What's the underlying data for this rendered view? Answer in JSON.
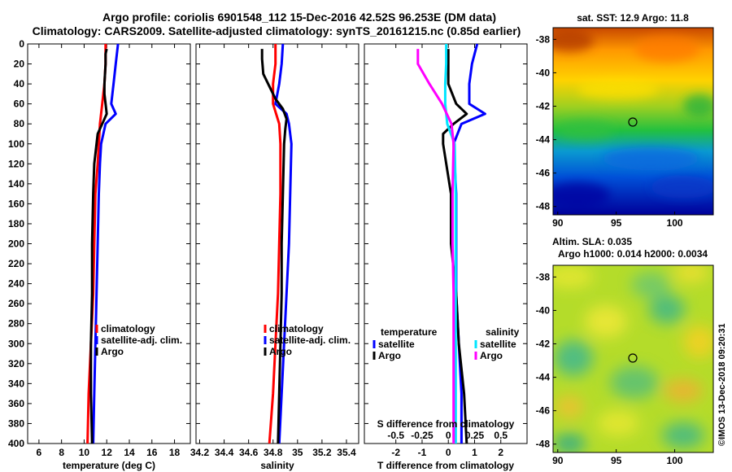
{
  "title_line1": "Argo profile: coriolis 6901548_112 15-Dec-2016 42.52S 96.253E (DM data)",
  "title_line2": "Climatology: CARS2009. Satellite-adjusted climatology: synTS_20161215.nc (0.85d earlier)",
  "colors": {
    "climatology": "#ff0000",
    "satellite": "#0000ff",
    "argo": "#000000",
    "sal_satellite": "#00e5ff",
    "sal_argo": "#ff00ff"
  },
  "map_top": {
    "title": "sat. SST: 12.9 Argo: 11.8",
    "xticks": [
      "90",
      "95",
      "100"
    ],
    "yticks": [
      "-38",
      "-40",
      "-42",
      "-44",
      "-46",
      "-48"
    ]
  },
  "map_bottom": {
    "title1": "Altim. SLA: 0.035",
    "title2": "Argo h1000: 0.014 h2000: 0.0034",
    "xticks": [
      "90",
      "95",
      "100"
    ],
    "yticks": [
      "-38",
      "-40",
      "-42",
      "-44",
      "-46",
      "-48"
    ]
  },
  "credit": "©IMOS 13-Dec-2018 09:20:31",
  "chart_data": [
    {
      "type": "line",
      "id": "temperature",
      "xlabel": "temperature (deg C)",
      "ylabel": "",
      "xlim": [
        5,
        19.4
      ],
      "ylim": [
        400,
        0
      ],
      "xticks": [
        "6",
        "8",
        "10",
        "12",
        "14",
        "16",
        "18"
      ],
      "yticks": [
        "0",
        "20",
        "40",
        "60",
        "80",
        "100",
        "120",
        "140",
        "160",
        "180",
        "200",
        "220",
        "240",
        "260",
        "280",
        "300",
        "320",
        "340",
        "360",
        "380",
        "400"
      ],
      "legend": [
        "climatology",
        "satellite-adj. clim.",
        "Argo"
      ],
      "series": [
        {
          "name": "climatology",
          "color": "#ff0000",
          "depth": [
            0,
            20,
            40,
            60,
            80,
            100,
            120,
            150,
            200,
            250,
            300,
            350,
            400
          ],
          "values": [
            11.9,
            11.9,
            11.8,
            11.6,
            11.4,
            11.3,
            11.2,
            11.0,
            10.9,
            10.8,
            10.6,
            10.4,
            10.3
          ]
        },
        {
          "name": "satellite-adj. clim.",
          "color": "#0000ff",
          "depth": [
            0,
            20,
            40,
            60,
            70,
            80,
            100,
            120,
            150,
            200,
            250,
            300,
            350,
            400
          ],
          "values": [
            13.0,
            12.8,
            12.6,
            12.4,
            12.8,
            11.9,
            11.5,
            11.4,
            11.3,
            11.2,
            11.1,
            11.0,
            10.9,
            10.8
          ]
        },
        {
          "name": "Argo",
          "color": "#000000",
          "depth": [
            5,
            10,
            20,
            40,
            50,
            60,
            70,
            80,
            90,
            100,
            120,
            150,
            200,
            250,
            300,
            350,
            400
          ],
          "values": [
            12.0,
            11.9,
            11.9,
            11.8,
            11.8,
            11.9,
            12.0,
            11.6,
            11.2,
            11.1,
            10.9,
            10.8,
            10.7,
            10.7,
            10.6,
            10.6,
            10.7
          ]
        }
      ]
    },
    {
      "type": "line",
      "id": "salinity",
      "xlabel": "salinity",
      "ylabel": "",
      "xlim": [
        34.17,
        35.5
      ],
      "ylim": [
        400,
        0
      ],
      "xticks": [
        "34.2",
        "34.4",
        "34.6",
        "34.8",
        "35",
        "35.2",
        "35.4"
      ],
      "legend": [
        "climatology",
        "satellite-adj. clim.",
        "Argo"
      ],
      "series": [
        {
          "name": "climatology",
          "color": "#ff0000",
          "depth": [
            0,
            20,
            40,
            60,
            80,
            100,
            150,
            200,
            250,
            300,
            350,
            400
          ],
          "values": [
            34.82,
            34.82,
            34.8,
            34.8,
            34.85,
            34.86,
            34.86,
            34.85,
            34.84,
            34.82,
            34.8,
            34.77
          ]
        },
        {
          "name": "satellite-adj. clim.",
          "color": "#0000ff",
          "depth": [
            0,
            20,
            40,
            60,
            70,
            80,
            100,
            150,
            200,
            250,
            300,
            350,
            400
          ],
          "values": [
            34.88,
            34.87,
            34.85,
            34.82,
            34.91,
            34.93,
            34.95,
            34.94,
            34.93,
            34.91,
            34.89,
            34.87,
            34.85
          ]
        },
        {
          "name": "Argo",
          "color": "#000000",
          "depth": [
            5,
            15,
            30,
            45,
            55,
            65,
            75,
            85,
            100,
            150,
            200,
            250,
            300,
            350,
            400
          ],
          "values": [
            34.71,
            34.71,
            34.72,
            34.78,
            34.82,
            34.88,
            34.91,
            34.9,
            34.89,
            34.88,
            34.87,
            34.87,
            34.86,
            34.85,
            34.84
          ]
        }
      ]
    },
    {
      "type": "line",
      "id": "difference",
      "xlabel": "T difference from climatology",
      "xlabel2": "S difference from climatology",
      "ylabel": "",
      "xlim": [
        -3.2,
        3.0
      ],
      "ylim": [
        400,
        0
      ],
      "xticks": [
        "-2",
        "-1",
        "0",
        "1",
        "2"
      ],
      "xticks_top": [
        "-0.5",
        "-0.25",
        "0",
        "0.25",
        "0.5"
      ],
      "legend_temperature_title": "temperature",
      "legend_salinity_title": "salinity",
      "legend": [
        "satellite",
        "Argo",
        "satellite",
        "Argo"
      ],
      "series": [
        {
          "name": "temperature satellite",
          "color": "#0000ff",
          "depth": [
            0,
            20,
            40,
            60,
            70,
            80,
            100,
            150,
            200,
            250,
            300,
            350,
            400
          ],
          "values": [
            1.1,
            0.9,
            0.8,
            0.8,
            1.4,
            0.5,
            0.2,
            0.3,
            0.3,
            0.3,
            0.4,
            0.5,
            0.5
          ]
        },
        {
          "name": "temperature Argo",
          "color": "#000000",
          "depth": [
            5,
            20,
            40,
            60,
            70,
            80,
            90,
            100,
            150,
            200,
            250,
            300,
            350,
            400
          ],
          "values": [
            0.0,
            0.0,
            0.0,
            0.3,
            0.7,
            0.2,
            -0.2,
            -0.2,
            0.1,
            0.1,
            0.3,
            0.4,
            0.6,
            0.7
          ]
        },
        {
          "name": "salinity satellite",
          "color": "#00e5ff",
          "depth": [
            0,
            20,
            40,
            60,
            80,
            100,
            150,
            200,
            250,
            300,
            350,
            400
          ],
          "values": [
            -0.02,
            -0.02,
            -0.03,
            -0.03,
            -0.01,
            0.06,
            0.07,
            0.07,
            0.07,
            0.07,
            0.07,
            0.07
          ]
        },
        {
          "name": "salinity Argo",
          "color": "#ff00ff",
          "depth": [
            5,
            20,
            40,
            60,
            80,
            100,
            150,
            200,
            250,
            300,
            350,
            400
          ],
          "values": [
            -0.29,
            -0.29,
            -0.18,
            -0.06,
            0.03,
            0.05,
            0.04,
            0.04,
            0.05,
            0.05,
            0.05,
            0.05
          ]
        }
      ]
    }
  ]
}
